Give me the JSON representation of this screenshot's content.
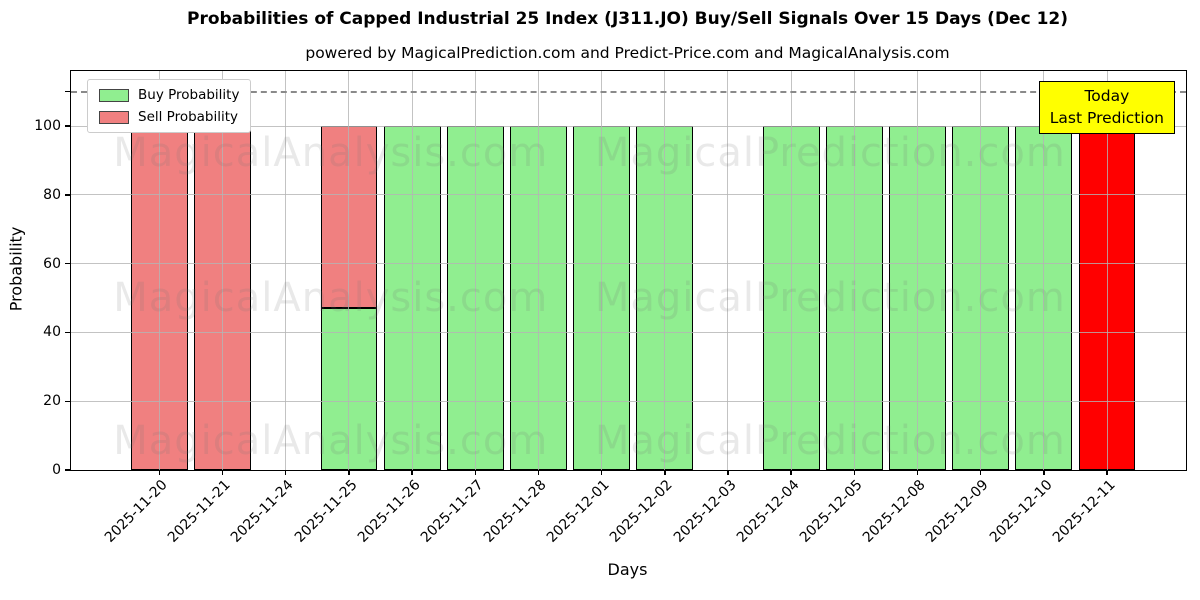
{
  "figure": {
    "title": "Probabilities of Capped Industrial 25 Index (J311.JO) Buy/Sell Signals Over 15 Days (Dec 12)",
    "subtitle": "powered by MagicalPrediction.com and Predict-Price.com and MagicalAnalysis.com"
  },
  "axes": {
    "xlabel": "Days",
    "ylabel": "Probability"
  },
  "legend": {
    "items": [
      {
        "label": "Buy Probability",
        "color": "#90ee90"
      },
      {
        "label": "Sell Probability",
        "color": "#f08080"
      }
    ]
  },
  "today_box": {
    "line1": "Today",
    "line2": "Last Prediction",
    "bg_color": "#ffff00"
  },
  "watermarks": {
    "left_text": "MagicalAnalysis.com",
    "right_text": "MagicalPrediction.com"
  },
  "chart_data": {
    "type": "bar",
    "stacked": true,
    "title": "Probabilities of Capped Industrial 25 Index (J311.JO) Buy/Sell Signals Over 15 Days (Dec 12)",
    "xlabel": "Days",
    "ylabel": "Probability",
    "categories": [
      "2025-11-20",
      "2025-11-21",
      "2025-11-24",
      "2025-11-25",
      "2025-11-26",
      "2025-11-27",
      "2025-11-28",
      "2025-12-01",
      "2025-12-02",
      "2025-12-03",
      "2025-12-04",
      "2025-12-05",
      "2025-12-08",
      "2025-12-09",
      "2025-12-10",
      "2025-12-11"
    ],
    "series": [
      {
        "name": "Buy Probability",
        "color": "#90ee90",
        "values": [
          0,
          0,
          0,
          47,
          100,
          100,
          100,
          100,
          100,
          0,
          100,
          100,
          100,
          100,
          100,
          0
        ]
      },
      {
        "name": "Sell Probability",
        "color": "#f08080",
        "values": [
          100,
          100,
          0,
          53,
          0,
          0,
          0,
          0,
          0,
          0,
          0,
          0,
          0,
          0,
          0,
          0
        ]
      },
      {
        "name": "Today (Last Prediction)",
        "color": "#ff0000",
        "values": [
          0,
          0,
          0,
          0,
          0,
          0,
          0,
          0,
          0,
          0,
          0,
          0,
          0,
          0,
          0,
          100
        ]
      }
    ],
    "ylim": [
      0,
      116
    ],
    "yticks": [
      0,
      20,
      40,
      60,
      80,
      100
    ],
    "dashed_line_y": 110,
    "grid": true,
    "legend_position": "upper left"
  }
}
